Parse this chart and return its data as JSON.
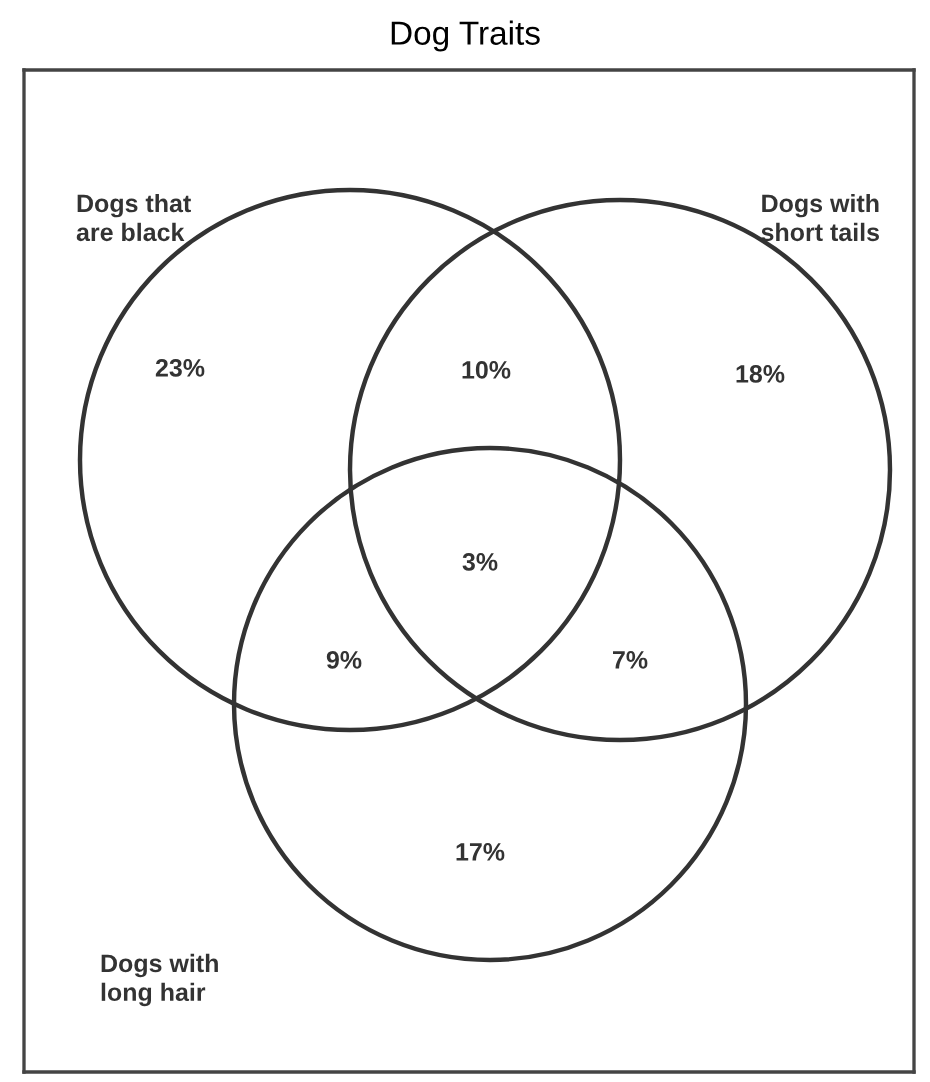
{
  "chart_data": {
    "type": "other",
    "title": "Dog Traits",
    "categories": [
      null,
      null,
      null,
      null,
      null,
      null,
      null
    ],
    "values": [
      23,
      10,
      18,
      3,
      9,
      7,
      17
    ],
    "value_labels": [
      "23%",
      "10%",
      "18%",
      "3%",
      "9%",
      "7%",
      "17%"
    ],
    "color": "#333333",
    "annotations": [
      "Dogs that\nare black",
      "Dogs with\nshort tails",
      "Dogs with\nlong hair"
    ]
  }
}
